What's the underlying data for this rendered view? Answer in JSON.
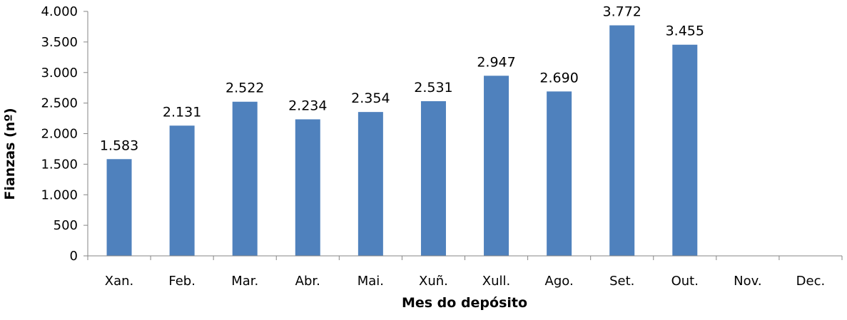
{
  "chart_data": {
    "type": "bar",
    "categories": [
      "Xan.",
      "Feb.",
      "Mar.",
      "Abr.",
      "Mai.",
      "Xuñ.",
      "Xull.",
      "Ago.",
      "Set.",
      "Out.",
      "Nov.",
      "Dec."
    ],
    "values": [
      1583,
      2131,
      2522,
      2234,
      2354,
      2531,
      2947,
      2690,
      3772,
      3455,
      null,
      null
    ],
    "data_labels": [
      "1.583",
      "2.131",
      "2.522",
      "2.234",
      "2.354",
      "2.531",
      "2.947",
      "2.690",
      "3.772",
      "3.455",
      "",
      ""
    ],
    "xlabel": "Mes do depósito",
    "ylabel": "Fianzas (nº)",
    "ylim": [
      0,
      4000
    ],
    "yticks": [
      0,
      500,
      1000,
      1500,
      2000,
      2500,
      3000,
      3500,
      4000
    ],
    "ytick_labels": [
      "0",
      "500",
      "1.000",
      "1.500",
      "2.000",
      "2.500",
      "3.000",
      "3.500",
      "4.000"
    ],
    "grid": false,
    "legend": "none",
    "bar_color": "#4F81BD",
    "axis_color": "#868686"
  }
}
